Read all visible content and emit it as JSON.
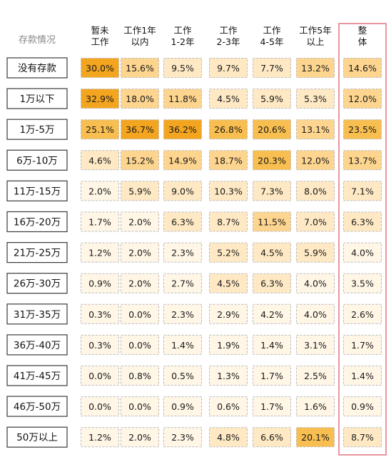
{
  "chart_data": {
    "type": "heatmap",
    "corner_label": "存款情况",
    "columns": [
      "暂未\n工作",
      "工作1年\n以内",
      "工作\n1-2年",
      "工作\n2-3年",
      "工作\n4-5年",
      "工作5年\n以上",
      "整\n体"
    ],
    "rows": [
      "没有存款",
      "1万以下",
      "1万-5万",
      "6万-10万",
      "11万-15万",
      "16万-20万",
      "21万-25万",
      "26万-30万",
      "31万-35万",
      "36万-40万",
      "41万-45万",
      "46万-50万",
      "50万以上"
    ],
    "values": [
      [
        30.0,
        15.6,
        9.5,
        9.7,
        7.7,
        13.2,
        14.6
      ],
      [
        32.9,
        18.0,
        11.8,
        4.5,
        5.9,
        5.3,
        12.0
      ],
      [
        25.1,
        36.7,
        36.2,
        26.8,
        20.6,
        13.1,
        23.5
      ],
      [
        4.6,
        15.2,
        14.9,
        18.7,
        20.3,
        12.0,
        13.7
      ],
      [
        2.0,
        5.9,
        9.0,
        10.3,
        7.3,
        8.0,
        7.1
      ],
      [
        1.7,
        2.0,
        6.3,
        8.7,
        11.5,
        7.0,
        6.3
      ],
      [
        1.2,
        2.0,
        2.3,
        5.2,
        4.5,
        5.9,
        4.0
      ],
      [
        0.9,
        2.0,
        2.7,
        4.5,
        6.3,
        4.0,
        3.5
      ],
      [
        0.3,
        0.0,
        2.3,
        2.9,
        4.2,
        4.0,
        2.6
      ],
      [
        0.3,
        0.0,
        1.4,
        1.9,
        1.4,
        3.1,
        1.7
      ],
      [
        0.0,
        0.8,
        0.5,
        1.3,
        1.7,
        2.5,
        1.4
      ],
      [
        0.0,
        0.0,
        0.9,
        0.6,
        1.7,
        1.6,
        0.9
      ],
      [
        1.2,
        2.0,
        2.3,
        4.8,
        6.6,
        20.1,
        8.7
      ]
    ],
    "value_suffix": "%",
    "colors": {
      "scale": [
        "#fff6e6",
        "#fee9c4",
        "#fdd58f",
        "#f8be50",
        "#f3a51f"
      ],
      "cell_border": "#b9b9b9",
      "row_label_border": "#3a3a3a",
      "highlight_border": "#e0737f"
    },
    "highlighted_column": 6
  }
}
